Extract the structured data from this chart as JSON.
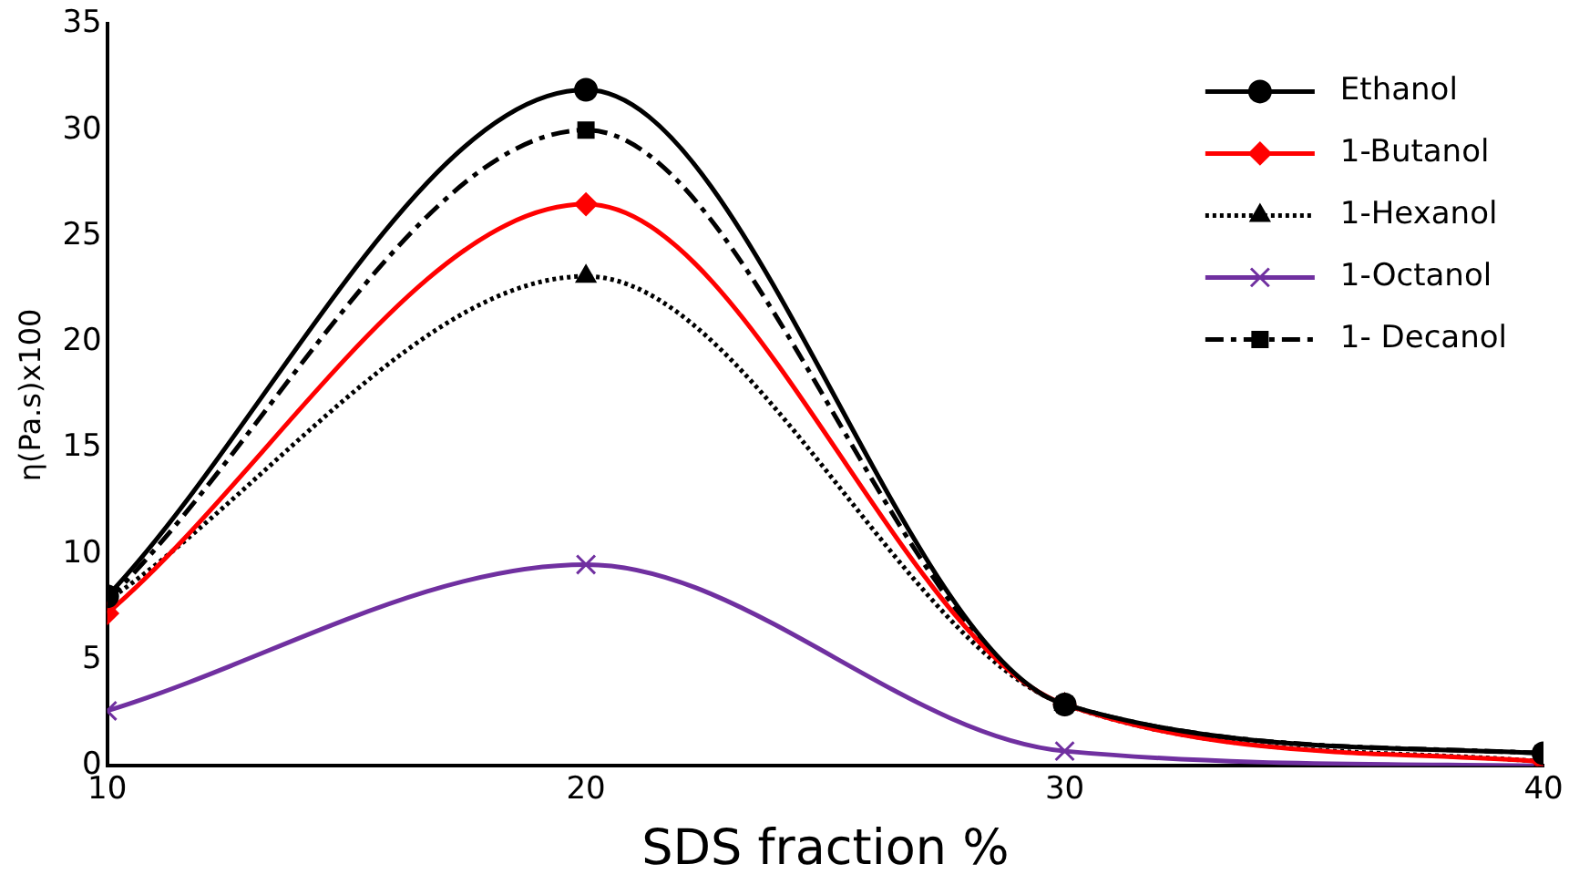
{
  "chart_data": {
    "type": "line",
    "xlabel": "SDS fraction %",
    "ylabel": "η(Pa.s)x100",
    "x": [
      10,
      20,
      30,
      40
    ],
    "xlim": [
      10,
      40
    ],
    "xticks": [
      10,
      20,
      30,
      40
    ],
    "ylim": [
      0,
      35
    ],
    "yticks": [
      0,
      5,
      10,
      15,
      20,
      25,
      30,
      35
    ],
    "grid": false,
    "legend": "top right",
    "series": [
      {
        "name": "Ethanol",
        "color": "#000000",
        "marker": "circle",
        "line_style": "solid",
        "values": [
          8.0,
          31.9,
          2.9,
          0.6
        ]
      },
      {
        "name": "1-Butanol",
        "color": "#ff0000",
        "marker": "diamond",
        "line_style": "solid",
        "values": [
          7.2,
          26.5,
          2.9,
          0.2
        ]
      },
      {
        "name": "1-Hexanol",
        "color": "#000000",
        "marker": "triangle",
        "line_style": "dotted",
        "values": [
          7.8,
          23.1,
          2.9,
          0.2
        ]
      },
      {
        "name": "1-Octanol",
        "color": "#7030a0",
        "marker": "cross",
        "line_style": "solid",
        "values": [
          2.6,
          9.5,
          0.7,
          0
        ]
      },
      {
        "name": "1- Decanol",
        "color": "#000000",
        "marker": "square",
        "line_style": "dashed",
        "values": [
          7.8,
          30.0,
          2.9,
          0.6
        ]
      }
    ]
  }
}
